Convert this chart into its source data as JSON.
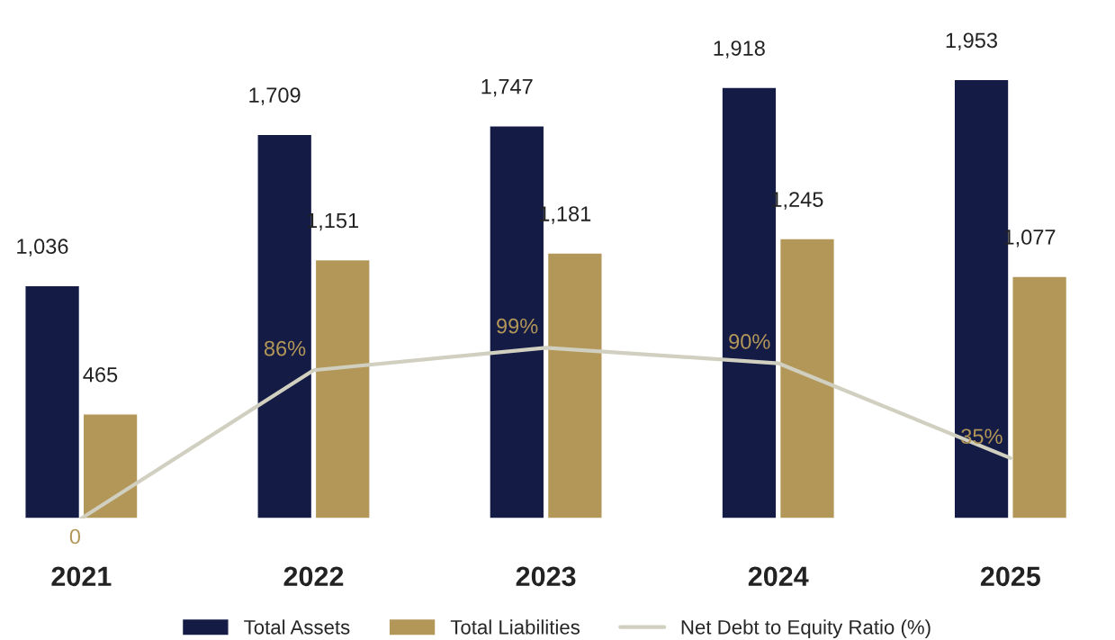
{
  "chart_data": {
    "type": "bar",
    "categories": [
      "2021",
      "2022",
      "2023",
      "2024",
      "2025"
    ],
    "series": [
      {
        "name": "Total Assets",
        "color": "#141b45",
        "values": [
          1036,
          1709,
          1747,
          1918,
          1953
        ],
        "value_labels": [
          "1,036",
          "1,709",
          "1,747",
          "1,918",
          "1,953"
        ]
      },
      {
        "name": "Total Liabilities",
        "color": "#b39758",
        "values": [
          465,
          1151,
          1181,
          1245,
          1077
        ],
        "value_labels": [
          "465",
          "1,151",
          "1,181",
          "1,245",
          "1,077"
        ]
      },
      {
        "name": "Net Debt to Equity Ratio (%)",
        "type": "line",
        "axis": "y2",
        "color": "#d0cfc0",
        "values": [
          0,
          86,
          99,
          90,
          35
        ],
        "value_labels": [
          "0",
          "86%",
          "99%",
          "90%",
          "35%"
        ]
      }
    ],
    "tick_labels": "x",
    "legend": "bottom",
    "grid": false
  }
}
